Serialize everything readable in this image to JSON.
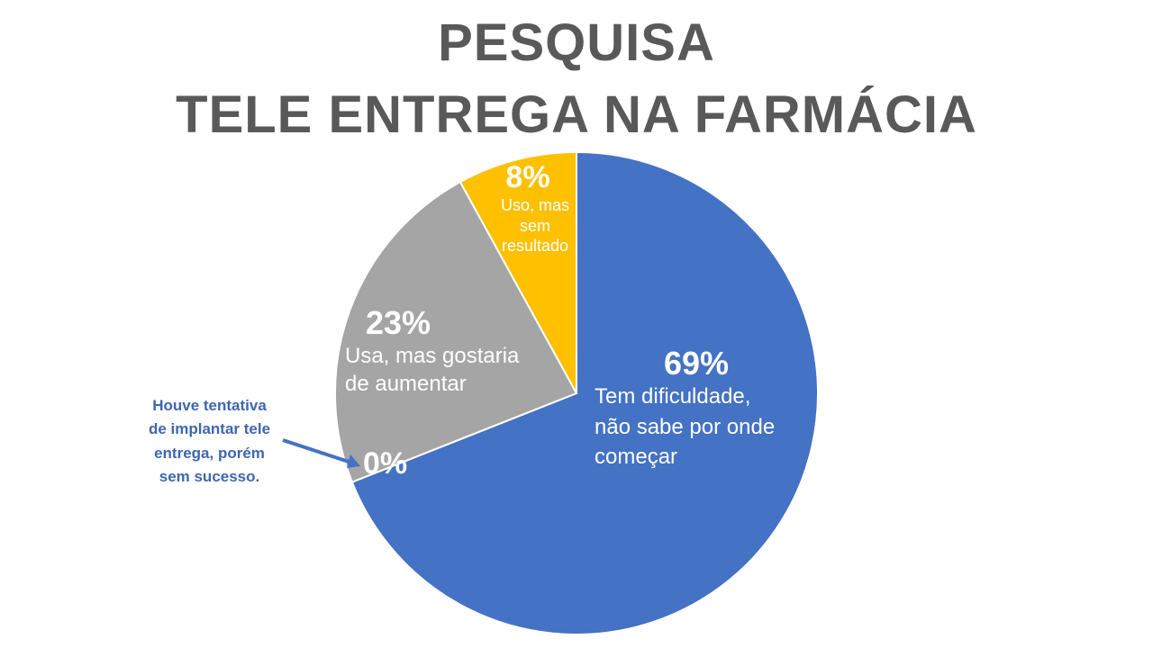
{
  "title": {
    "line1": "PESQUISA",
    "line2": "TELE ENTREGA NA FARMÁCIA"
  },
  "chart_data": {
    "type": "pie",
    "title": "PESQUISA TELE ENTREGA NA FARMÁCIA",
    "start_angle_deg": -90,
    "direction": "clockwise",
    "legend": "none",
    "slices": [
      {
        "label": "Tem dificuldade, não sabe por onde começar",
        "value": 69,
        "pct_label": "69%",
        "color": "#4472C4"
      },
      {
        "label": "Houve tentativa de implantar tele entrega, porém sem sucesso.",
        "value": 0,
        "pct_label": "0%",
        "color": "#4472C4"
      },
      {
        "label": "Usa, mas gostaria de aumentar",
        "value": 23,
        "pct_label": "23%",
        "color": "#A5A5A5"
      },
      {
        "label": "Uso, mas sem resultado",
        "value": 8,
        "pct_label": "8%",
        "color": "#FFC000"
      }
    ]
  },
  "callouts": {
    "blue": {
      "lines": [
        "Tem dificuldade,",
        "não sabe por onde",
        "começar"
      ]
    },
    "gray": {
      "lines": [
        "Usa, mas gostaria",
        "de aumentar"
      ]
    },
    "yellow": {
      "lines": [
        "Uso, mas",
        "sem",
        "resultado"
      ]
    },
    "annotation": {
      "lines": [
        "Houve tentativa",
        "de implantar tele",
        "entrega, porém",
        "sem sucesso."
      ],
      "color": "#3F66B0"
    }
  }
}
